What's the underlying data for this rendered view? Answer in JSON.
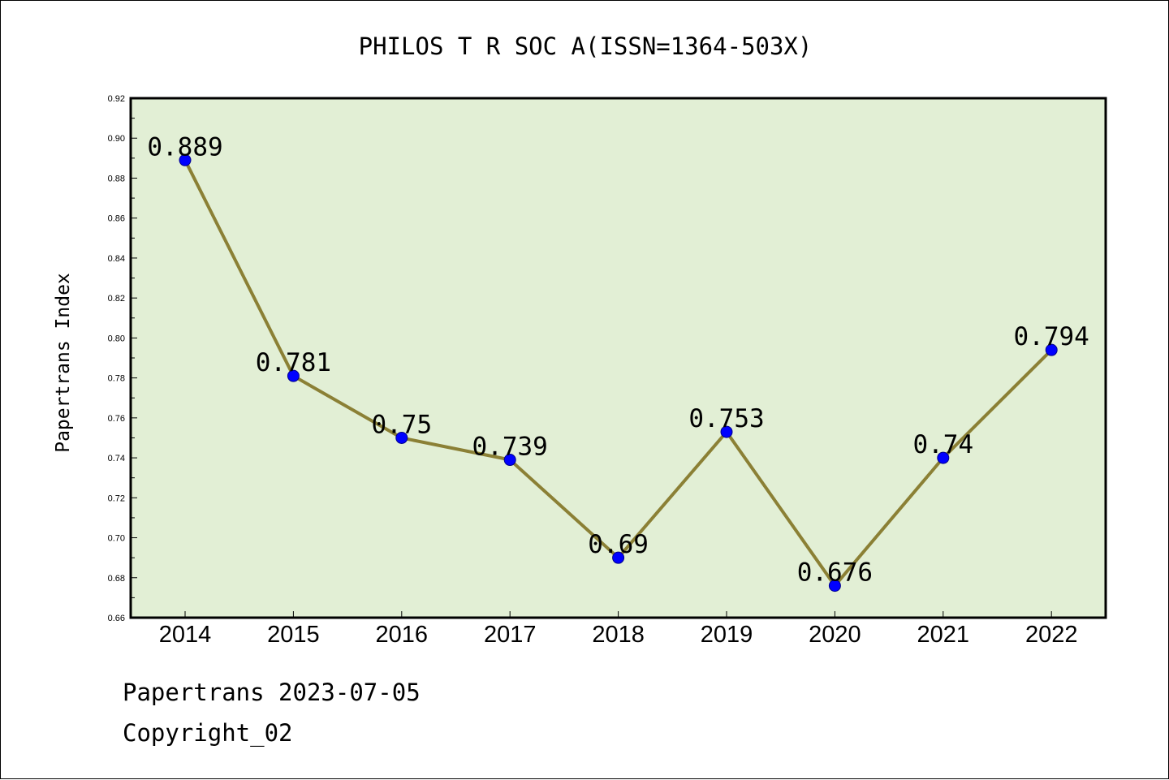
{
  "chart_data": {
    "type": "line",
    "title": "PHILOS T R SOC A(ISSN=1364-503X)",
    "ylabel": "Papertrans Index",
    "xlabel": "",
    "categories": [
      "2014",
      "2015",
      "2016",
      "2017",
      "2018",
      "2019",
      "2020",
      "2021",
      "2022"
    ],
    "values": [
      0.889,
      0.781,
      0.75,
      0.739,
      0.69,
      0.753,
      0.676,
      0.74,
      0.794
    ],
    "data_labels": [
      "0.889",
      "0.781",
      "0.75",
      "0.739",
      "0.69",
      "0.753",
      "0.676",
      "0.74",
      "0.794"
    ],
    "ylim": [
      0.66,
      0.92
    ],
    "yticks": [
      "0.66",
      "0.68",
      "0.70",
      "0.72",
      "0.74",
      "0.76",
      "0.78",
      "0.80",
      "0.82",
      "0.84",
      "0.86",
      "0.88",
      "0.90",
      "0.92"
    ],
    "grid": false,
    "colors": {
      "plot_background": "#e2efd5",
      "line": "#8b8035",
      "marker": "#0000ff",
      "marker_edge": "#00008b"
    }
  },
  "footer": {
    "date_line": "Papertrans 2023-07-05",
    "copyright_line": "Copyright_02"
  }
}
